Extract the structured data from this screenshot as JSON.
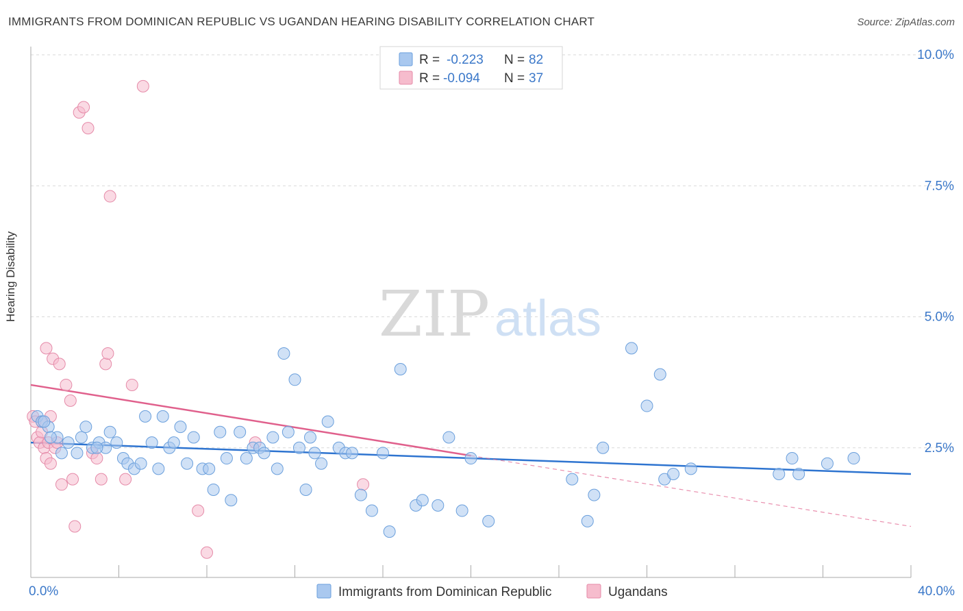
{
  "title": "IMMIGRANTS FROM DOMINICAN REPUBLIC VS UGANDAN HEARING DISABILITY CORRELATION CHART",
  "source": "Source: ZipAtlas.com",
  "watermark": {
    "zip": "ZIP",
    "atlas": "atlas"
  },
  "colors": {
    "blue_fill": "#a9c8ef",
    "blue_stroke": "#6a9fdc",
    "blue_line": "#2e74d0",
    "pink_fill": "#f6bccd",
    "pink_stroke": "#e58aa8",
    "pink_line": "#e0608c",
    "axis_text": "#3b78c9",
    "grid": "#d9d9d9"
  },
  "legend_box": {
    "rows": [
      {
        "r_label": "R =",
        "r_value": "-0.223",
        "n_label": "N =",
        "n_value": "82"
      },
      {
        "r_label": "R =",
        "r_value": "-0.094",
        "n_label": "N =",
        "n_value": "37"
      }
    ]
  },
  "chart_data": {
    "type": "scatter",
    "title": "IMMIGRANTS FROM DOMINICAN REPUBLIC VS UGANDAN HEARING DISABILITY CORRELATION CHART",
    "xlabel": "",
    "ylabel": "Hearing Disability",
    "xlim": [
      0,
      40
    ],
    "ylim": [
      0,
      10.5
    ],
    "x_tick_labels": [
      "0.0%",
      "40.0%"
    ],
    "y_ticks": [
      2.5,
      5.0,
      7.5,
      10.0
    ],
    "y_tick_labels": [
      "2.5%",
      "5.0%",
      "7.5%",
      "10.0%"
    ],
    "grid": true,
    "legend_position": "bottom-center",
    "series": [
      {
        "name": "Immigrants from Dominican Republic",
        "color": "#a9c8ef",
        "trend": {
          "x": [
            0,
            40
          ],
          "y": [
            2.6,
            2.0
          ],
          "dashed_from": null
        },
        "points": [
          [
            0.3,
            3.1
          ],
          [
            0.5,
            3.0
          ],
          [
            0.8,
            2.9
          ],
          [
            1.2,
            2.7
          ],
          [
            1.7,
            2.6
          ],
          [
            2.1,
            2.4
          ],
          [
            2.3,
            2.7
          ],
          [
            2.5,
            2.9
          ],
          [
            2.8,
            2.5
          ],
          [
            3.1,
            2.6
          ],
          [
            3.4,
            2.5
          ],
          [
            3.6,
            2.8
          ],
          [
            3.9,
            2.6
          ],
          [
            4.2,
            2.3
          ],
          [
            4.4,
            2.2
          ],
          [
            4.7,
            2.1
          ],
          [
            5.0,
            2.2
          ],
          [
            5.2,
            3.1
          ],
          [
            5.5,
            2.6
          ],
          [
            5.8,
            2.1
          ],
          [
            6.0,
            3.1
          ],
          [
            6.3,
            2.5
          ],
          [
            6.5,
            2.6
          ],
          [
            6.8,
            2.9
          ],
          [
            7.1,
            2.2
          ],
          [
            7.4,
            2.7
          ],
          [
            7.8,
            2.1
          ],
          [
            8.1,
            2.1
          ],
          [
            8.3,
            1.7
          ],
          [
            8.6,
            2.8
          ],
          [
            8.9,
            2.3
          ],
          [
            9.1,
            1.5
          ],
          [
            9.5,
            2.8
          ],
          [
            9.8,
            2.3
          ],
          [
            10.1,
            2.5
          ],
          [
            10.4,
            2.5
          ],
          [
            10.6,
            2.4
          ],
          [
            11.0,
            2.7
          ],
          [
            11.2,
            2.1
          ],
          [
            11.5,
            4.3
          ],
          [
            11.7,
            2.8
          ],
          [
            12.0,
            3.8
          ],
          [
            12.2,
            2.5
          ],
          [
            12.5,
            1.7
          ],
          [
            12.7,
            2.7
          ],
          [
            12.9,
            2.4
          ],
          [
            13.2,
            2.2
          ],
          [
            13.5,
            3.0
          ],
          [
            14.0,
            2.5
          ],
          [
            14.3,
            2.4
          ],
          [
            14.6,
            2.4
          ],
          [
            15.0,
            1.6
          ],
          [
            15.5,
            1.3
          ],
          [
            16.0,
            2.4
          ],
          [
            16.3,
            0.9
          ],
          [
            16.8,
            4.0
          ],
          [
            17.5,
            1.4
          ],
          [
            17.8,
            1.5
          ],
          [
            18.5,
            1.4
          ],
          [
            19.0,
            2.7
          ],
          [
            19.6,
            1.3
          ],
          [
            20.0,
            2.3
          ],
          [
            20.8,
            1.1
          ],
          [
            24.6,
            1.9
          ],
          [
            25.3,
            1.1
          ],
          [
            25.6,
            1.6
          ],
          [
            26.0,
            2.5
          ],
          [
            27.3,
            4.4
          ],
          [
            28.0,
            3.3
          ],
          [
            28.6,
            3.9
          ],
          [
            28.8,
            1.9
          ],
          [
            29.2,
            2.0
          ],
          [
            30.0,
            2.1
          ],
          [
            34.0,
            2.0
          ],
          [
            34.6,
            2.3
          ],
          [
            34.9,
            2.0
          ],
          [
            36.2,
            2.2
          ],
          [
            37.4,
            2.3
          ],
          [
            0.6,
            3.0
          ],
          [
            1.4,
            2.4
          ],
          [
            0.9,
            2.7
          ],
          [
            3.0,
            2.5
          ]
        ]
      },
      {
        "name": "Ugandans",
        "color": "#f6bccd",
        "trend": {
          "x": [
            0,
            40
          ],
          "y": [
            3.7,
            1.0
          ],
          "dashed_from": 20
        },
        "points": [
          [
            0.1,
            3.1
          ],
          [
            0.2,
            3.0
          ],
          [
            0.3,
            2.7
          ],
          [
            0.4,
            2.6
          ],
          [
            0.5,
            2.8
          ],
          [
            0.6,
            2.5
          ],
          [
            0.7,
            2.3
          ],
          [
            0.8,
            2.6
          ],
          [
            0.9,
            2.2
          ],
          [
            1.1,
            2.5
          ],
          [
            1.2,
            2.6
          ],
          [
            1.4,
            1.8
          ],
          [
            1.6,
            3.7
          ],
          [
            1.8,
            3.4
          ],
          [
            1.9,
            1.9
          ],
          [
            2.0,
            1.0
          ],
          [
            2.2,
            8.9
          ],
          [
            2.4,
            9.0
          ],
          [
            2.6,
            8.6
          ],
          [
            2.8,
            2.4
          ],
          [
            3.0,
            2.3
          ],
          [
            3.2,
            1.9
          ],
          [
            3.4,
            4.1
          ],
          [
            3.5,
            4.3
          ],
          [
            3.6,
            7.3
          ],
          [
            4.3,
            1.9
          ],
          [
            4.6,
            3.7
          ],
          [
            5.1,
            9.4
          ],
          [
            7.6,
            1.3
          ],
          [
            8.0,
            0.5
          ],
          [
            10.2,
            2.6
          ],
          [
            15.1,
            1.8
          ],
          [
            1.0,
            4.2
          ],
          [
            0.7,
            4.4
          ],
          [
            1.3,
            4.1
          ],
          [
            0.9,
            3.1
          ],
          [
            0.5,
            3.0
          ]
        ]
      }
    ]
  }
}
